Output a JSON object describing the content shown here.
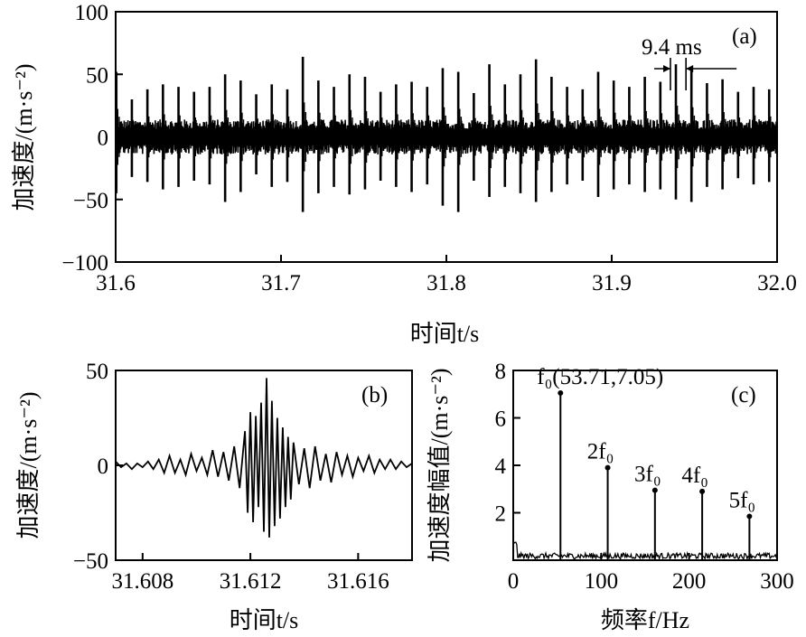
{
  "chart_data": [
    {
      "id": "a",
      "type": "line",
      "panel_label": "(a)",
      "xlabel": "时间t/s",
      "ylabel": "加速度/(m·s⁻²)",
      "xlim": [
        31.6,
        32.0
      ],
      "ylim": [
        -100,
        100
      ],
      "xticks": [
        "31.6",
        "31.7",
        "31.8",
        "31.9",
        "32.0"
      ],
      "yticks": [
        "100",
        "50",
        "0",
        "−50",
        "−100"
      ],
      "series": [
        {
          "x": [
            31.6004,
            31.6098,
            31.6192,
            31.6286,
            31.638,
            31.6474,
            31.6568,
            31.6662,
            31.6756,
            31.685,
            31.6944,
            31.7038,
            31.7132,
            31.7226,
            31.732,
            31.7414,
            31.7508,
            31.7602,
            31.7696,
            31.779,
            31.7884,
            31.7978,
            31.8072,
            31.8166,
            31.826,
            31.8354,
            31.8448,
            31.8542,
            31.8636,
            31.873,
            31.8824,
            31.8918,
            31.9012,
            31.9106,
            31.92,
            31.9294,
            31.9388,
            31.9482,
            31.9576,
            31.967,
            31.9764,
            31.9858,
            31.9952
          ],
          "peak_values": [
            52,
            30,
            38,
            42,
            40,
            36,
            40,
            50,
            45,
            34,
            42,
            38,
            64,
            45,
            40,
            50,
            48,
            36,
            42,
            44,
            40,
            55,
            52,
            35,
            58,
            42,
            50,
            62,
            48,
            40,
            38,
            52,
            45,
            40,
            48,
            44,
            58,
            55,
            43,
            46,
            36,
            40,
            38
          ],
          "trough_values": [
            -45,
            -32,
            -36,
            -42,
            -40,
            -35,
            -38,
            -52,
            -44,
            -30,
            -40,
            -36,
            -60,
            -45,
            -40,
            -46,
            -42,
            -35,
            -40,
            -44,
            -38,
            -55,
            -60,
            -35,
            -48,
            -40,
            -45,
            -52,
            -44,
            -38,
            -35,
            -48,
            -42,
            -38,
            -44,
            -42,
            -50,
            -52,
            -40,
            -42,
            -33,
            -38,
            -36
          ],
          "noise_amplitude": 14
        }
      ],
      "annotations": [
        {
          "text": "9.4 ms",
          "x_start": 31.9355,
          "x_end": 31.9449,
          "y": 52
        }
      ]
    },
    {
      "id": "b",
      "type": "line",
      "panel_label": "(b)",
      "xlabel": "时间t/s",
      "ylabel": "加速度/(m·s⁻²)",
      "xlim": [
        31.607,
        31.618
      ],
      "ylim": [
        -50,
        50
      ],
      "xticks": [
        "31.608",
        "31.612",
        "31.616"
      ],
      "yticks": [
        "50",
        "0",
        "−50"
      ],
      "series": [
        {
          "x": [
            31.607,
            31.6072,
            31.6074,
            31.6076,
            31.6078,
            31.608,
            31.6082,
            31.6084,
            31.6086,
            31.6088,
            31.609,
            31.6092,
            31.6094,
            31.6096,
            31.6098,
            31.61,
            31.6102,
            31.6104,
            31.6106,
            31.6108,
            31.611,
            31.6112,
            31.6114,
            31.6116,
            31.6118,
            31.6119,
            31.612,
            31.6121,
            31.6122,
            31.6123,
            31.6124,
            31.6125,
            31.6126,
            31.6127,
            31.6128,
            31.6129,
            31.613,
            31.6131,
            31.6132,
            31.6133,
            31.6134,
            31.6135,
            31.6136,
            31.6138,
            31.614,
            31.6142,
            31.6144,
            31.6146,
            31.6148,
            31.615,
            31.6152,
            31.6154,
            31.6156,
            31.6158,
            31.616,
            31.6162,
            31.6164,
            31.6166,
            31.6168,
            31.617,
            31.6172,
            31.6174,
            31.6176,
            31.6178,
            31.618
          ],
          "y": [
            2,
            -1,
            1,
            -2,
            1,
            -1,
            2,
            -2,
            3,
            -4,
            5,
            -4,
            3,
            -5,
            6,
            -3,
            4,
            -5,
            8,
            -6,
            7,
            -8,
            10,
            -12,
            18,
            -25,
            28,
            -30,
            26,
            -22,
            33,
            -35,
            46,
            -38,
            34,
            -32,
            25,
            -28,
            20,
            -22,
            15,
            -18,
            12,
            -10,
            9,
            -12,
            10,
            -8,
            6,
            -9,
            7,
            -5,
            5,
            -6,
            4,
            -3,
            5,
            -4,
            3,
            -2,
            3,
            -2,
            2,
            -1,
            1
          ]
        }
      ]
    },
    {
      "id": "c",
      "type": "line",
      "panel_label": "(c)",
      "xlabel": "频率f/Hz",
      "ylabel": "加速度幅值/(m·s⁻²)",
      "xlim": [
        0,
        300
      ],
      "ylim": [
        0,
        8
      ],
      "xticks": [
        "0",
        "100",
        "200",
        "300"
      ],
      "yticks": [
        "8",
        "6",
        "4",
        "2"
      ],
      "peaks": [
        {
          "label": "f₀(53.71,7.05)",
          "x": 53.71,
          "y": 7.05
        },
        {
          "label": "2f₀",
          "x": 107.42,
          "y": 3.9
        },
        {
          "label": "3f₀",
          "x": 161.13,
          "y": 2.95
        },
        {
          "label": "4f₀",
          "x": 214.84,
          "y": 2.9
        },
        {
          "label": "5f₀",
          "x": 268.55,
          "y": 1.85
        }
      ],
      "noise_floor": 0.3
    }
  ]
}
